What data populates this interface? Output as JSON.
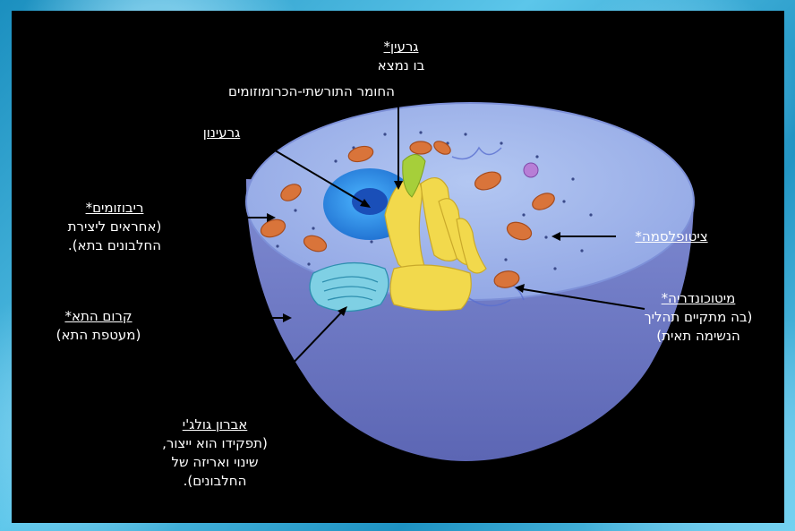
{
  "colors": {
    "frame": "#2a9fc9",
    "panel": "#000000",
    "cell_side": "#8a96d8",
    "cell_top": "#9aaee8",
    "nucleus": "#2f8fe0",
    "nucleolus": "#1a4fb8",
    "golgi": "#f0d64a",
    "mitochondria": "#d9743a",
    "er": "#6ec6e0",
    "text": "#ffffff"
  },
  "labels": {
    "nucleus": {
      "title": "גרעין*",
      "desc": [
        "בו נמצא",
        "החומר התורשתי-הכרומוזומים"
      ]
    },
    "nucleolus": {
      "title": "גרעינון"
    },
    "ribosomes": {
      "title": "ריבוזומים*",
      "desc": [
        "(אחראים ליצירת",
        "החלבונים בתא)."
      ]
    },
    "cytoplasm": {
      "title": "ציטופלסמה*"
    },
    "membrane": {
      "title": "קרום התא*",
      "desc": [
        "(מעטפת התא)"
      ]
    },
    "mitochondria": {
      "title": "מיטוכונדריה*",
      "desc": [
        "(בה מתקיים תהליך",
        "הנשימה תאית)"
      ]
    },
    "golgi": {
      "title": "אברון גולג'י",
      "desc": [
        "(תפקידו הוא ייצור,",
        "שינוי ואריזה של",
        "החלבונים)."
      ]
    }
  }
}
